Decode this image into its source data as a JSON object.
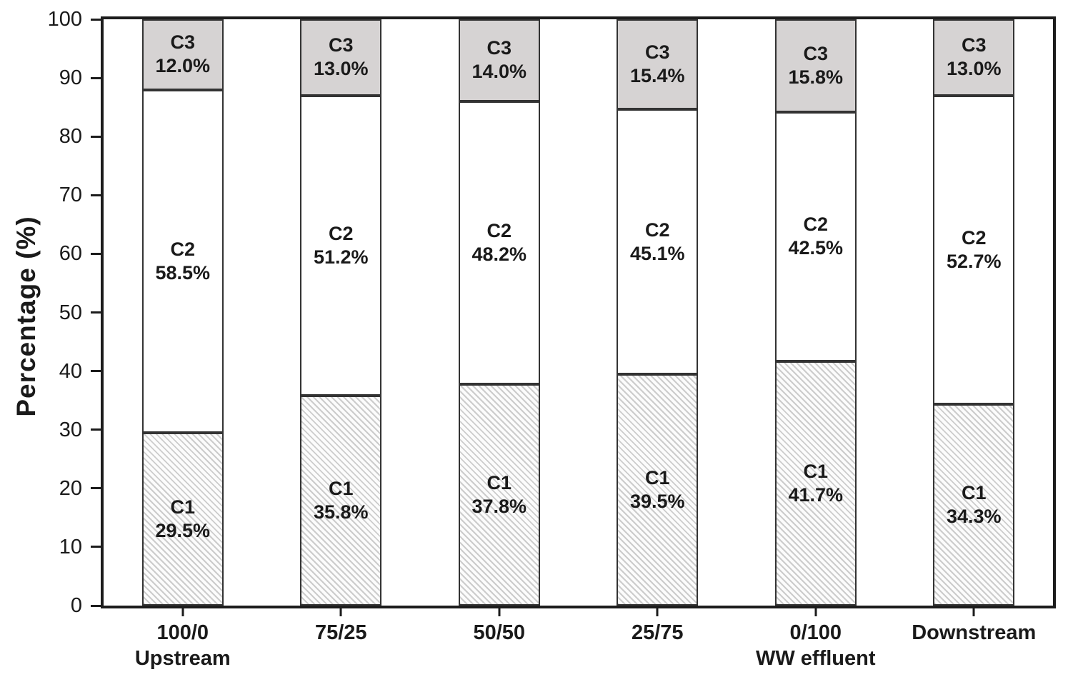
{
  "chart_data": {
    "type": "bar",
    "stacked": true,
    "title": "",
    "ylabel": "Percentage (%)",
    "xlabel": "",
    "ylim": [
      0,
      100
    ],
    "yticks": [
      0,
      10,
      20,
      30,
      40,
      50,
      60,
      70,
      80,
      90,
      100
    ],
    "grid": false,
    "legend_position": "none (series labeled inside bar segments)",
    "categories": [
      "100/0",
      "75/25",
      "50/50",
      "25/75",
      "0/100",
      "Downstream"
    ],
    "category_sublabels": [
      "Upstream",
      "",
      "",
      "",
      "WW effluent",
      ""
    ],
    "series": [
      {
        "name": "C1",
        "fill": "diagonal-hatch",
        "values": [
          29.5,
          35.8,
          37.8,
          39.5,
          41.7,
          34.3
        ]
      },
      {
        "name": "C2",
        "fill": "white",
        "values": [
          58.5,
          51.2,
          48.2,
          45.1,
          42.5,
          52.7
        ]
      },
      {
        "name": "C3",
        "fill": "gray",
        "values": [
          12.0,
          13.0,
          14.0,
          15.4,
          15.8,
          13.0
        ]
      }
    ],
    "segment_label_format": "{name} newline {value}%"
  },
  "colors": {
    "axis": "#1c1c1c",
    "segment_border": "#333333",
    "text": "#1a1a1a",
    "c1_background": "#fcfcfc",
    "c1_hatch_stripe": "#cccccc",
    "c2_fill": "#ffffff",
    "c3_fill": "#d6d3d3"
  }
}
